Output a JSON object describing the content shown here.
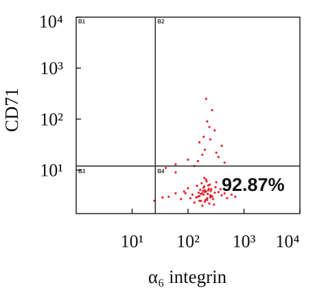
{
  "chart_data": {
    "type": "scatter",
    "x_label": "α₆ integrin",
    "y_label": "CD71",
    "xlog": true,
    "ylog": true,
    "xlim": [
      1,
      10000
    ],
    "ylim": [
      1.4,
      10000
    ],
    "xticks": [
      {
        "value": 10,
        "label": "10¹"
      },
      {
        "value": 100,
        "label": "10²"
      },
      {
        "value": 1000,
        "label": "10³"
      },
      {
        "value": 10000,
        "label": "10⁴"
      }
    ],
    "yticks": [
      {
        "value": 10,
        "label": "10¹"
      },
      {
        "value": 100,
        "label": "10²"
      },
      {
        "value": 1000,
        "label": "10³"
      },
      {
        "value": 10000,
        "label": "10⁴"
      }
    ],
    "color": "#e8202a",
    "gates": {
      "x": 26,
      "y": 12
    },
    "quadrants": [
      "B1",
      "B2",
      "B3",
      "B4"
    ],
    "annotation": "92.87%",
    "x": [
      150,
      180,
      200,
      220,
      250,
      170,
      210,
      190,
      230,
      160,
      140,
      260,
      300,
      120,
      280,
      240,
      200,
      175,
      215,
      195,
      185,
      225,
      205,
      165,
      245,
      310,
      350,
      400,
      130,
      110,
      90,
      100,
      270,
      290,
      320,
      155,
      235,
      255,
      145,
      195,
      210,
      180,
      190,
      220,
      200,
      250,
      230,
      170,
      160,
      265,
      380,
      450,
      500,
      600,
      700,
      85,
      75,
      60,
      45,
      35,
      150,
      200,
      250,
      300,
      180,
      220,
      350,
      130,
      400,
      270,
      210,
      190,
      240,
      160,
      450,
      320,
      100,
      60,
      40,
      25,
      60
    ],
    "y": [
      3,
      3.5,
      4,
      2.8,
      3.2,
      2.5,
      3.8,
      4.5,
      5,
      3.1,
      2.9,
      4.2,
      3.6,
      3.3,
      2.7,
      2.2,
      2.4,
      5.5,
      6,
      4.8,
      3.9,
      3.4,
      2.6,
      4.1,
      5.2,
      4.6,
      3.7,
      3.2,
      2.3,
      2.8,
      3.5,
      4.4,
      3,
      2.1,
      5.8,
      3.6,
      4.3,
      3.9,
      4.9,
      7,
      6.5,
      2,
      3.3,
      2.6,
      3.7,
      2.9,
      4,
      3.4,
      2.5,
      3.1,
      4.2,
      3.5,
      2.8,
      3.3,
      3,
      3.8,
      2.7,
      3.5,
      3,
      2.9,
      15,
      25,
      40,
      60,
      20,
      90,
      18,
      12,
      30,
      150,
      250,
      45,
      70,
      35,
      14,
      22,
      16,
      13,
      11,
      2.5,
      9
    ]
  }
}
